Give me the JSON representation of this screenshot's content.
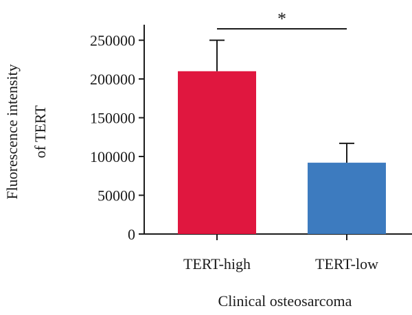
{
  "chart_data": {
    "type": "bar",
    "categories": [
      "TERT-high",
      "TERT-low"
    ],
    "values": [
      210000,
      92000
    ],
    "error_upper": [
      250000,
      117000
    ],
    "colors": [
      "#e0173f",
      "#3d7bbf"
    ],
    "ylabel_lines": [
      "Fluorescence intensity",
      "of TERT"
    ],
    "xlabel": "Clinical osteosarcoma",
    "ylim": [
      0,
      270000
    ],
    "yticks": [
      0,
      50000,
      100000,
      150000,
      200000,
      250000
    ],
    "ytick_labels": [
      "0",
      "50000",
      "100000",
      "150000",
      "200000",
      "250000"
    ],
    "significance": {
      "label": "*",
      "between": [
        0,
        1
      ]
    },
    "grid": false,
    "legend": "none"
  }
}
